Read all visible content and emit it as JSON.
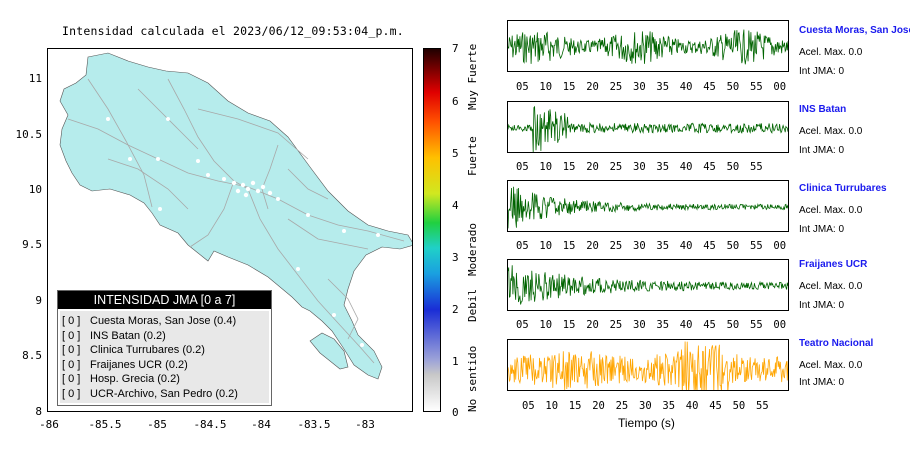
{
  "map": {
    "title": "Intensidad calculada el 2023/06/12_09:53:04_p.m.",
    "lat_ticks": [
      "11",
      "10.5",
      "10",
      "9.5",
      "9",
      "8.5",
      "8"
    ],
    "lon_ticks": [
      "-86",
      "-85.5",
      "-85",
      "-84.5",
      "-84",
      "-83.5",
      "-83"
    ],
    "land_color": "#b6ecec",
    "road_color": "#a8a8a8"
  },
  "colorbar": {
    "ticks": [
      "7",
      "6",
      "5",
      "4",
      "3",
      "2",
      "1",
      "0"
    ],
    "labels": [
      "Muy Fuerte",
      "Fuerte",
      "Moderado",
      "Debil",
      "No sentido"
    ]
  },
  "legend": {
    "title": "INTENSIDAD JMA [0 a 7]",
    "rows": [
      {
        "level": "[ 0 ]",
        "station": "Cuesta Moras, San Jose (0.4)"
      },
      {
        "level": "[ 0 ]",
        "station": "INS Batan (0.2)"
      },
      {
        "level": "[ 0 ]",
        "station": "Clinica Turrubares (0.2)"
      },
      {
        "level": "[ 0 ]",
        "station": "Fraijanes UCR (0.2)"
      },
      {
        "level": "[ 0 ]",
        "station": "Hosp. Grecia (0.2)"
      },
      {
        "level": "[ 0 ]",
        "station": "UCR-Archivo, San Pedro (0.2)"
      }
    ]
  },
  "traces": [
    {
      "name": "Cuesta Moras, San Jose",
      "accel": "Acel. Max. 0.0",
      "jma": "Int JMA: 0",
      "color": "#006400",
      "ticks": [
        "05",
        "10",
        "15",
        "20",
        "25",
        "30",
        "35",
        "40",
        "45",
        "50",
        "55",
        "00"
      ]
    },
    {
      "name": "INS Batan",
      "accel": "Acel. Max. 0.0",
      "jma": "Int JMA: 0",
      "color": "#006400",
      "ticks": [
        "05",
        "10",
        "15",
        "20",
        "25",
        "30",
        "35",
        "40",
        "45",
        "50",
        "55"
      ]
    },
    {
      "name": "Clinica Turrubares",
      "accel": "Acel. Max. 0.0",
      "jma": "Int JMA: 0",
      "color": "#006400",
      "ticks": [
        "05",
        "10",
        "15",
        "20",
        "25",
        "30",
        "35",
        "40",
        "45",
        "50",
        "55",
        "00"
      ]
    },
    {
      "name": "Fraijanes UCR",
      "accel": "Acel. Max. 0.0",
      "jma": "Int JMA: 0",
      "color": "#006400",
      "ticks": [
        "05",
        "10",
        "15",
        "20",
        "25",
        "30",
        "35",
        "40",
        "45",
        "50",
        "55",
        "00"
      ]
    },
    {
      "name": "Teatro Nacional",
      "accel": "Acel. Max. 0.0",
      "jma": "Int JMA: 0",
      "color": "#ffa500",
      "ticks": [
        "05",
        "10",
        "15",
        "20",
        "25",
        "30",
        "35",
        "40",
        "45",
        "50",
        "55"
      ]
    }
  ],
  "time_axis_label": "Tiempo (s)"
}
